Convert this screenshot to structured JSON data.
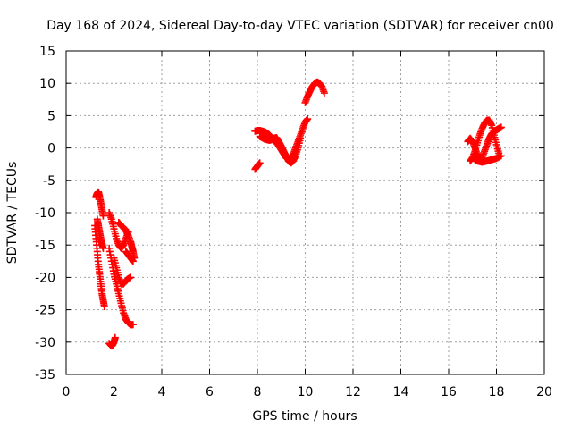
{
  "chart_data": {
    "type": "scatter",
    "title": "Day 168 of 2024, Sidereal Day-to-day VTEC variation (SDTVAR) for receiver cn00",
    "xlabel": "GPS time / hours",
    "ylabel": "SDTVAR / TECUs",
    "xlim": [
      0,
      20
    ],
    "ylim": [
      -35,
      15
    ],
    "xticks": [
      0,
      2,
      4,
      6,
      8,
      10,
      12,
      14,
      16,
      18,
      20
    ],
    "yticks": [
      -35,
      -30,
      -25,
      -20,
      -15,
      -10,
      -5,
      0,
      5,
      10,
      15
    ],
    "grid": true,
    "marker": "plus",
    "series_color": "#ff0000",
    "segments": [
      {
        "name": "arc-1a",
        "x": [
          1.25,
          1.3,
          1.35,
          1.4,
          1.45,
          1.5,
          1.55
        ],
        "y": [
          -7.5,
          -7.0,
          -6.8,
          -7.5,
          -8.5,
          -9.5,
          -10.5
        ]
      },
      {
        "name": "arc-1b",
        "x": [
          1.2,
          1.25,
          1.3,
          1.35,
          1.4,
          1.45,
          1.5,
          1.55,
          1.6
        ],
        "y": [
          -12.0,
          -14.0,
          -16.0,
          -18.0,
          -19.5,
          -21.0,
          -22.5,
          -23.5,
          -24.5
        ]
      },
      {
        "name": "arc-1c",
        "x": [
          1.3,
          1.35,
          1.4,
          1.45,
          1.5,
          1.55
        ],
        "y": [
          -11.0,
          -12.0,
          -13.0,
          -14.0,
          -14.8,
          -15.5
        ]
      },
      {
        "name": "arc-1d",
        "x": [
          1.8,
          1.9,
          1.95,
          2.0,
          2.05
        ],
        "y": [
          -30.2,
          -30.6,
          -30.4,
          -30.0,
          -29.3
        ]
      },
      {
        "name": "arc-2a",
        "x": [
          1.8,
          1.9,
          2.0,
          2.1,
          2.2,
          2.3,
          2.4,
          2.5,
          2.6
        ],
        "y": [
          -10.0,
          -11.0,
          -12.5,
          -14.0,
          -15.0,
          -15.5,
          -15.0,
          -14.0,
          -13.0
        ]
      },
      {
        "name": "arc-2b",
        "x": [
          1.8,
          1.9,
          2.0,
          2.1,
          2.2,
          2.3,
          2.4,
          2.5,
          2.6,
          2.7,
          2.8
        ],
        "y": [
          -15.5,
          -17.5,
          -19.5,
          -21.0,
          -22.5,
          -24.0,
          -25.5,
          -26.5,
          -27.0,
          -27.3,
          -27.3
        ]
      },
      {
        "name": "arc-2c",
        "x": [
          2.0,
          2.1,
          2.2,
          2.3,
          2.4,
          2.5,
          2.6,
          2.7
        ],
        "y": [
          -17.0,
          -18.5,
          -20.0,
          -21.0,
          -21.0,
          -20.5,
          -20.2,
          -20.0
        ]
      },
      {
        "name": "arc-2d",
        "x": [
          2.2,
          2.3,
          2.4,
          2.5,
          2.6,
          2.7,
          2.75,
          2.8,
          2.85
        ],
        "y": [
          -11.5,
          -12.0,
          -12.3,
          -12.8,
          -13.5,
          -14.5,
          -15.3,
          -16.0,
          -17.0
        ]
      },
      {
        "name": "arc-2e",
        "x": [
          2.5,
          2.6,
          2.7,
          2.8
        ],
        "y": [
          -16.0,
          -16.5,
          -17.0,
          -17.5
        ]
      },
      {
        "name": "arc-3a",
        "x": [
          7.9,
          8.0,
          8.1
        ],
        "y": [
          -3.3,
          -2.8,
          -2.3
        ]
      },
      {
        "name": "arc-3b",
        "x": [
          7.9,
          8.0,
          8.1,
          8.2,
          8.3,
          8.4,
          8.5,
          8.6,
          8.7,
          8.8,
          8.9,
          9.0,
          9.1,
          9.2,
          9.3,
          9.4,
          9.5,
          9.6,
          9.7,
          9.8,
          9.9,
          10.0,
          10.1
        ],
        "y": [
          2.6,
          2.7,
          2.7,
          2.6,
          2.5,
          2.3,
          2.0,
          1.6,
          1.2,
          0.8,
          0.3,
          -0.3,
          -0.9,
          -1.5,
          -1.8,
          -1.6,
          -1.0,
          0.0,
          1.0,
          2.0,
          3.0,
          4.0,
          4.5
        ]
      },
      {
        "name": "arc-3c",
        "x": [
          8.1,
          8.2,
          8.3,
          8.4,
          8.5,
          8.6,
          8.7,
          8.8,
          8.9,
          9.0,
          9.1,
          9.2,
          9.3,
          9.4,
          9.5,
          9.6,
          9.7,
          9.8
        ],
        "y": [
          1.8,
          1.6,
          1.4,
          1.3,
          1.2,
          1.3,
          1.5,
          1.6,
          1.0,
          0.3,
          -0.5,
          -1.2,
          -2.0,
          -2.3,
          -2.0,
          -1.2,
          0.0,
          1.5
        ]
      },
      {
        "name": "arc-3d",
        "x": [
          10.0,
          10.1,
          10.2,
          10.3,
          10.4,
          10.5,
          10.6,
          10.7,
          10.8
        ],
        "y": [
          7.0,
          8.0,
          8.8,
          9.5,
          10.0,
          10.2,
          10.0,
          9.5,
          8.5
        ]
      },
      {
        "name": "arc-4a",
        "x": [
          16.8,
          16.9,
          17.0,
          17.1,
          17.2,
          17.3,
          17.4,
          17.5,
          17.6,
          17.7,
          17.8,
          17.9,
          18.0,
          18.1,
          18.2
        ],
        "y": [
          1.0,
          1.5,
          1.0,
          0.0,
          -1.0,
          -1.8,
          -1.5,
          -0.5,
          0.5,
          1.5,
          2.2,
          2.5,
          2.8,
          3.0,
          3.2
        ]
      },
      {
        "name": "arc-4b",
        "x": [
          16.9,
          17.0,
          17.1,
          17.2,
          17.3,
          17.4,
          17.5,
          17.6,
          17.7,
          17.8,
          17.9,
          18.0,
          18.1
        ],
        "y": [
          -2.0,
          -1.5,
          -0.5,
          0.8,
          2.0,
          3.0,
          3.8,
          4.3,
          4.3,
          3.5,
          2.0,
          0.5,
          -0.8
        ]
      },
      {
        "name": "arc-4c",
        "x": [
          17.0,
          17.2,
          17.4,
          17.6,
          17.8,
          18.0,
          18.2
        ],
        "y": [
          -1.5,
          -2.0,
          -2.2,
          -2.0,
          -1.8,
          -1.6,
          -1.2
        ]
      }
    ]
  }
}
